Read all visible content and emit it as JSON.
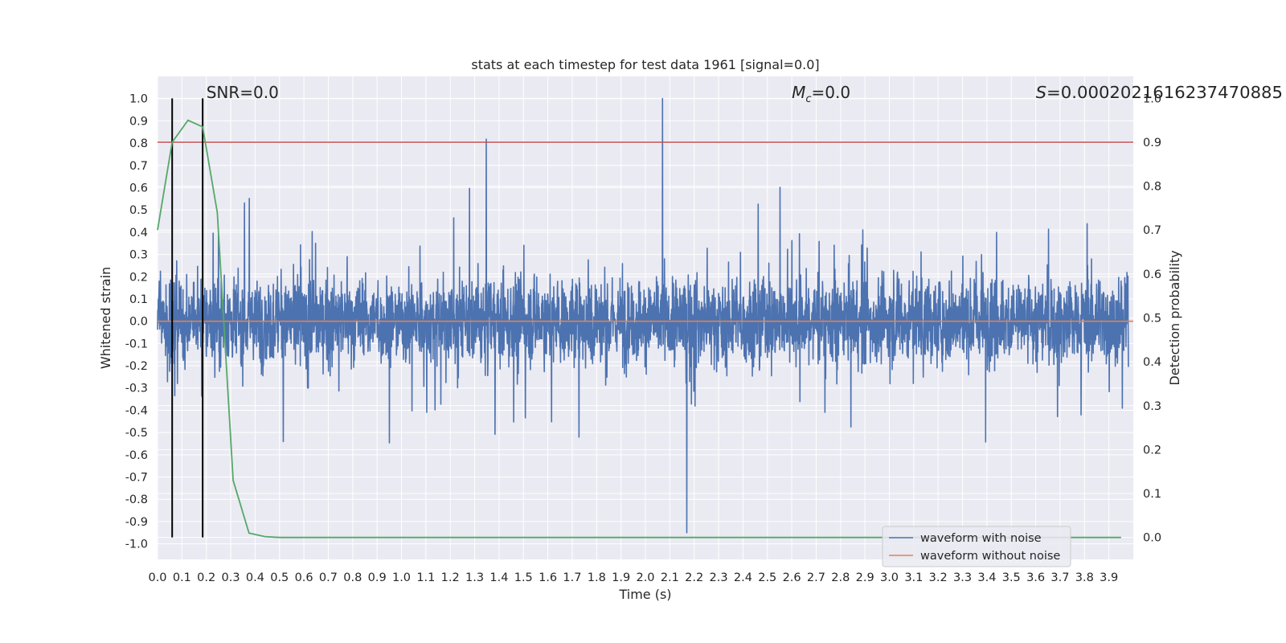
{
  "chart_data": {
    "type": "line",
    "title": "stats at each timestep for test data 1961 [signal=0.0]",
    "xlabel": "Time (s)",
    "ylabel": "Whitened strain",
    "y2label": "Detection probability",
    "xlim": [
      0.0,
      4.0
    ],
    "ylim": [
      -1.07,
      1.1
    ],
    "y2lim": [
      -0.05,
      1.05
    ],
    "grid": true,
    "legend": "lower right",
    "x_ticks": [
      "0.0",
      "0.1",
      "0.2",
      "0.3",
      "0.4",
      "0.5",
      "0.6",
      "0.7",
      "0.8",
      "0.9",
      "1.0",
      "1.1",
      "1.2",
      "1.3",
      "1.4",
      "1.5",
      "1.6",
      "1.7",
      "1.8",
      "1.9",
      "2.0",
      "2.1",
      "2.2",
      "2.3",
      "2.4",
      "2.5",
      "2.6",
      "2.7",
      "2.8",
      "2.9",
      "3.0",
      "3.1",
      "3.2",
      "3.3",
      "3.4",
      "3.5",
      "3.6",
      "3.7",
      "3.8",
      "3.9"
    ],
    "y_ticks": [
      "1.0",
      "0.9",
      "0.8",
      "0.7",
      "0.6",
      "0.5",
      "0.4",
      "0.3",
      "0.2",
      "0.1",
      "0.0",
      "-0.1",
      "-0.2",
      "-0.3",
      "-0.4",
      "-0.5",
      "-0.6",
      "-0.7",
      "-0.8",
      "-0.9",
      "-1.0"
    ],
    "y2_ticks": [
      "1.0",
      "0.9",
      "0.8",
      "0.7",
      "0.6",
      "0.5",
      "0.4",
      "0.3",
      "0.2",
      "0.1",
      "0.0"
    ],
    "annotations": {
      "snr": "SNR=0.0",
      "mc_symbol": "M",
      "mc_sub": "c",
      "mc_value": "=0.0",
      "s_symbol": "S",
      "s_value": "=0.0002021616237470885"
    },
    "series": [
      {
        "name": "waveform with noise",
        "color": "#4c72b0",
        "axis": "left",
        "description_samples": "dense noise, amplitude mostly within ±0.6, peaks near 1.0 at t≈2.07"
      },
      {
        "name": "waveform without noise",
        "color": "#dd8452",
        "axis": "left",
        "x": [
          0.0,
          4.0
        ],
        "y": [
          0.0,
          0.0
        ]
      },
      {
        "color": "#55a868",
        "axis": "right",
        "x": [
          0.0,
          0.06,
          0.125,
          0.185,
          0.245,
          0.31,
          0.375,
          0.44,
          0.5,
          0.6,
          1.0,
          2.0,
          3.0,
          3.95
        ],
        "y": [
          0.7,
          0.9,
          0.95,
          0.935,
          0.74,
          0.13,
          0.01,
          0.002,
          0.0,
          0.0,
          0.0,
          0.0,
          0.0,
          0.0
        ]
      }
    ],
    "hlines": [
      {
        "axis": "right",
        "y": 0.9,
        "color": "#c44e52"
      }
    ],
    "vlines": [
      {
        "x": 0.06,
        "color": "#000000"
      },
      {
        "x": 0.185,
        "color": "#000000"
      }
    ]
  }
}
